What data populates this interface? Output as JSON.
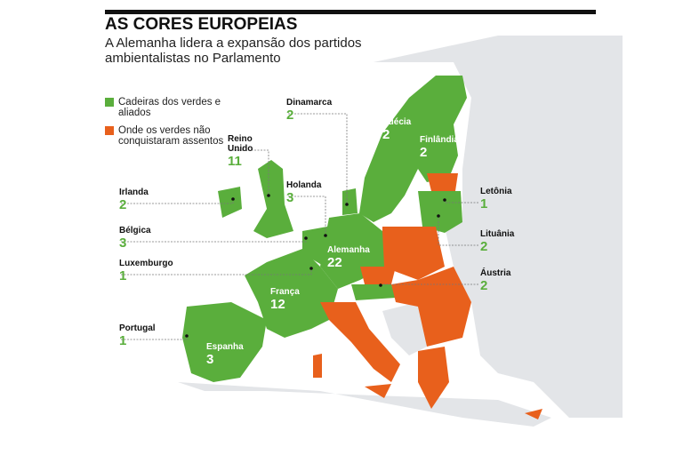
{
  "header": {
    "title": "AS CORES EUROPEIAS",
    "subtitle": "A Alemanha lidera a expansão dos partidos ambientalistas no Parlamento"
  },
  "legend": {
    "items": [
      {
        "label": "Cadeiras dos verdes e aliados",
        "color": "#5aae3c"
      },
      {
        "label": "Onde os verdes não conquistaram assentos",
        "color": "#e8601c"
      }
    ]
  },
  "countries": [
    {
      "name": "Dinamarca",
      "seats": 2
    },
    {
      "name": "Suécia",
      "seats": 2
    },
    {
      "name": "Finlândia",
      "seats": 2
    },
    {
      "name": "Reino Unido",
      "seats": 11
    },
    {
      "name": "Holanda",
      "seats": 3
    },
    {
      "name": "Irlanda",
      "seats": 2
    },
    {
      "name": "Bélgica",
      "seats": 3
    },
    {
      "name": "Luxemburgo",
      "seats": 1
    },
    {
      "name": "Portugal",
      "seats": 1
    },
    {
      "name": "Espanha",
      "seats": 3
    },
    {
      "name": "França",
      "seats": 12
    },
    {
      "name": "Alemanha",
      "seats": 22
    },
    {
      "name": "Letônia",
      "seats": 1
    },
    {
      "name": "Lituânia",
      "seats": 2
    },
    {
      "name": "Áustria",
      "seats": 2
    }
  ]
}
